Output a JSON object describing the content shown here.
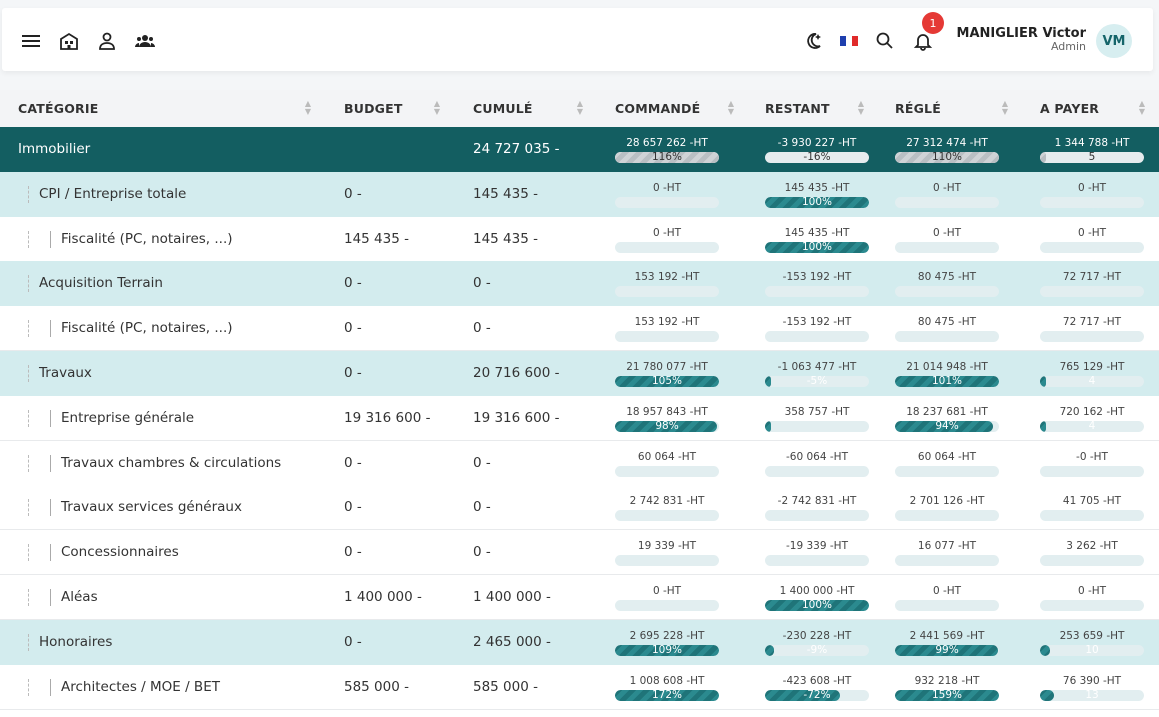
{
  "header": {
    "icons": [
      "menu-icon",
      "building-icon",
      "user-icon",
      "group-icon",
      "night-mode-icon",
      "flag-fr-icon",
      "search-icon",
      "bell-icon"
    ],
    "notification_count": "1",
    "user_name": "MANIGLIER Victor",
    "user_role": "Admin",
    "avatar_initials": "VM",
    "colors": {
      "accent": "#135e61",
      "light": "#d3ecee",
      "badge": "#e53935"
    }
  },
  "table": {
    "columns": [
      "CATÉGORIE",
      "BUDGET",
      "CUMULÉ",
      "COMMANDÉ",
      "RESTANT",
      "RÉGLÉ",
      "A PAYER"
    ],
    "rows": [
      {
        "type": "main",
        "name": "Immobilier",
        "budget": "",
        "cumule": "24 727 035 -",
        "commande": {
          "val": "28 657 262 -HT",
          "pct": "116%",
          "frac": 1
        },
        "restant": {
          "val": "-3 930 227 -HT",
          "pct": "-16%",
          "frac": 0
        },
        "regle": {
          "val": "27 312 474 -HT",
          "pct": "110%",
          "frac": 1
        },
        "apayer": {
          "val": "1 344 788 -HT",
          "pct": "5",
          "frac": 0.05
        }
      },
      {
        "type": "cat",
        "name": "CPI / Entreprise totale",
        "budget": "0 -",
        "cumule": "145 435 -",
        "commande": {
          "val": "0 -HT",
          "pct": "",
          "frac": 0
        },
        "restant": {
          "val": "145 435 -HT",
          "pct": "100%",
          "frac": 1
        },
        "regle": {
          "val": "0 -HT",
          "pct": "",
          "frac": 0
        },
        "apayer": {
          "val": "0 -HT",
          "pct": "",
          "frac": 0
        }
      },
      {
        "type": "sub",
        "name": "Fiscalité (PC, notaires, ...)",
        "budget": "145 435 -",
        "cumule": "145 435 -",
        "commande": {
          "val": "0 -HT",
          "pct": "",
          "frac": 0
        },
        "restant": {
          "val": "145 435 -HT",
          "pct": "100%",
          "frac": 1
        },
        "regle": {
          "val": "0 -HT",
          "pct": "",
          "frac": 0
        },
        "apayer": {
          "val": "0 -HT",
          "pct": "",
          "frac": 0
        }
      },
      {
        "type": "cat",
        "name": "Acquisition Terrain",
        "budget": "0 -",
        "cumule": "0 -",
        "commande": {
          "val": "153 192 -HT",
          "pct": "",
          "frac": 0
        },
        "restant": {
          "val": "-153 192 -HT",
          "pct": "",
          "frac": 0
        },
        "regle": {
          "val": "80 475 -HT",
          "pct": "",
          "frac": 0
        },
        "apayer": {
          "val": "72 717 -HT",
          "pct": "",
          "frac": 0
        }
      },
      {
        "type": "sub",
        "name": "Fiscalité (PC, notaires, ...)",
        "budget": "0 -",
        "cumule": "0 -",
        "commande": {
          "val": "153 192 -HT",
          "pct": "",
          "frac": 0
        },
        "restant": {
          "val": "-153 192 -HT",
          "pct": "",
          "frac": 0
        },
        "regle": {
          "val": "80 475 -HT",
          "pct": "",
          "frac": 0
        },
        "apayer": {
          "val": "72 717 -HT",
          "pct": "",
          "frac": 0
        }
      },
      {
        "type": "cat",
        "name": "Travaux",
        "budget": "0 -",
        "cumule": "20 716 600 -",
        "commande": {
          "val": "21 780 077 -HT",
          "pct": "105%",
          "frac": 1
        },
        "restant": {
          "val": "-1 063 477 -HT",
          "pct": "-5%",
          "frac": 0.05
        },
        "regle": {
          "val": "21 014 948 -HT",
          "pct": "101%",
          "frac": 1
        },
        "apayer": {
          "val": "765 129 -HT",
          "pct": "4",
          "frac": 0.04
        }
      },
      {
        "type": "sub",
        "name": "Entreprise générale",
        "budget": "19 316 600 -",
        "cumule": "19 316 600 -",
        "commande": {
          "val": "18 957 843 -HT",
          "pct": "98%",
          "frac": 0.98
        },
        "restant": {
          "val": "358 757 -HT",
          "pct": "",
          "frac": 0.02
        },
        "regle": {
          "val": "18 237 681 -HT",
          "pct": "94%",
          "frac": 0.94
        },
        "apayer": {
          "val": "720 162 -HT",
          "pct": "4",
          "frac": 0.04
        }
      },
      {
        "type": "sub",
        "name": "Travaux chambres & circulations",
        "budget": "0 -",
        "cumule": "0 -",
        "commande": {
          "val": "60 064 -HT",
          "pct": "",
          "frac": 0
        },
        "restant": {
          "val": "-60 064 -HT",
          "pct": "",
          "frac": 0
        },
        "regle": {
          "val": "60 064 -HT",
          "pct": "",
          "frac": 0
        },
        "apayer": {
          "val": "-0 -HT",
          "pct": "",
          "frac": 0
        }
      },
      {
        "type": "sub",
        "name": "Travaux services généraux",
        "budget": "0 -",
        "cumule": "0 -",
        "commande": {
          "val": "2 742 831 -HT",
          "pct": "",
          "frac": 0
        },
        "restant": {
          "val": "-2 742 831 -HT",
          "pct": "",
          "frac": 0
        },
        "regle": {
          "val": "2 701 126 -HT",
          "pct": "",
          "frac": 0
        },
        "apayer": {
          "val": "41 705 -HT",
          "pct": "",
          "frac": 0
        }
      },
      {
        "type": "sub",
        "name": "Concessionnaires",
        "budget": "0 -",
        "cumule": "0 -",
        "commande": {
          "val": "19 339 -HT",
          "pct": "",
          "frac": 0
        },
        "restant": {
          "val": "-19 339 -HT",
          "pct": "",
          "frac": 0
        },
        "regle": {
          "val": "16 077 -HT",
          "pct": "",
          "frac": 0
        },
        "apayer": {
          "val": "3 262 -HT",
          "pct": "",
          "frac": 0
        }
      },
      {
        "type": "sub",
        "name": "Aléas",
        "budget": "1 400 000 -",
        "cumule": "1 400 000 -",
        "commande": {
          "val": "0 -HT",
          "pct": "",
          "frac": 0
        },
        "restant": {
          "val": "1 400 000 -HT",
          "pct": "100%",
          "frac": 1
        },
        "regle": {
          "val": "0 -HT",
          "pct": "",
          "frac": 0
        },
        "apayer": {
          "val": "0 -HT",
          "pct": "",
          "frac": 0
        }
      },
      {
        "type": "cat",
        "name": "Honoraires",
        "budget": "0 -",
        "cumule": "2 465 000 -",
        "commande": {
          "val": "2 695 228 -HT",
          "pct": "109%",
          "frac": 1
        },
        "restant": {
          "val": "-230 228 -HT",
          "pct": "-9%",
          "frac": 0.09
        },
        "regle": {
          "val": "2 441 569 -HT",
          "pct": "99%",
          "frac": 0.99
        },
        "apayer": {
          "val": "253 659 -HT",
          "pct": "10",
          "frac": 0.1
        }
      },
      {
        "type": "sub",
        "name": "Architectes / MOE / BET",
        "budget": "585 000 -",
        "cumule": "585 000 -",
        "commande": {
          "val": "1 008 608 -HT",
          "pct": "172%",
          "frac": 1
        },
        "restant": {
          "val": "-423 608 -HT",
          "pct": "-72%",
          "frac": 0.72
        },
        "regle": {
          "val": "932 218 -HT",
          "pct": "159%",
          "frac": 1
        },
        "apayer": {
          "val": "76 390 -HT",
          "pct": "13",
          "frac": 0.13
        }
      }
    ]
  }
}
